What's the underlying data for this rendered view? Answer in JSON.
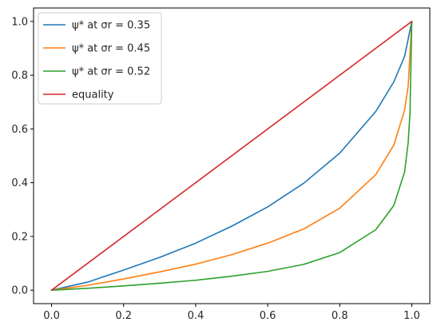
{
  "chart_data": {
    "type": "line",
    "title": "",
    "xlabel": "",
    "ylabel": "",
    "xlim": [
      -0.05,
      1.05
    ],
    "ylim": [
      -0.05,
      1.05
    ],
    "x_ticks": [
      0.0,
      0.2,
      0.4,
      0.6,
      0.8,
      1.0
    ],
    "x_tick_labels": [
      "0.0",
      "0.2",
      "0.4",
      "0.6",
      "0.8",
      "1.0"
    ],
    "y_ticks": [
      0.0,
      0.2,
      0.4,
      0.6,
      0.8,
      1.0
    ],
    "y_tick_labels": [
      "0.0",
      "0.2",
      "0.4",
      "0.6",
      "0.8",
      "1.0"
    ],
    "grid": false,
    "legend_position": "upper-left",
    "series": [
      {
        "name": "ψ* at σr = 0.35",
        "color": "#1f77b4",
        "x": [
          0.0,
          0.1,
          0.2,
          0.3,
          0.4,
          0.5,
          0.6,
          0.7,
          0.8,
          0.9,
          0.95,
          0.98,
          1.0
        ],
        "y": [
          0.0,
          0.03,
          0.075,
          0.122,
          0.175,
          0.238,
          0.31,
          0.398,
          0.51,
          0.665,
          0.775,
          0.87,
          1.0
        ]
      },
      {
        "name": "ψ* at σr = 0.45",
        "color": "#ff7f0e",
        "x": [
          0.0,
          0.1,
          0.2,
          0.3,
          0.4,
          0.5,
          0.6,
          0.7,
          0.8,
          0.9,
          0.95,
          0.98,
          0.99,
          1.0
        ],
        "y": [
          0.0,
          0.018,
          0.042,
          0.068,
          0.097,
          0.132,
          0.175,
          0.228,
          0.305,
          0.43,
          0.54,
          0.67,
          0.76,
          1.0
        ]
      },
      {
        "name": "ψ* at σr = 0.52",
        "color": "#2ca02c",
        "x": [
          0.0,
          0.1,
          0.2,
          0.3,
          0.4,
          0.5,
          0.6,
          0.7,
          0.8,
          0.9,
          0.95,
          0.98,
          0.99,
          0.995,
          1.0
        ],
        "y": [
          0.0,
          0.007,
          0.016,
          0.026,
          0.037,
          0.052,
          0.07,
          0.096,
          0.14,
          0.225,
          0.315,
          0.44,
          0.55,
          0.66,
          1.0
        ]
      },
      {
        "name": "equality",
        "color": "#d62728",
        "x": [
          0.0,
          1.0
        ],
        "y": [
          0.0,
          1.0
        ]
      }
    ]
  }
}
